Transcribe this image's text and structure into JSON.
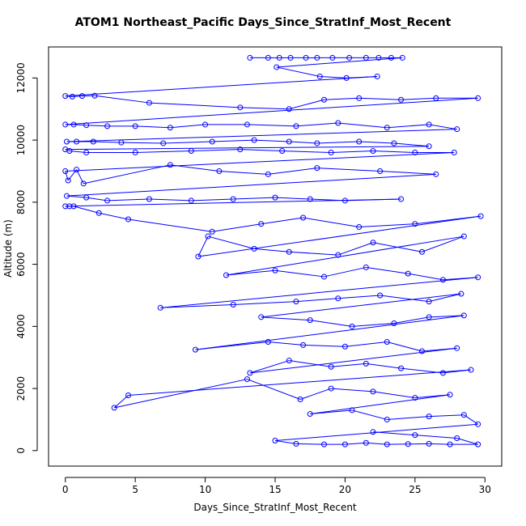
{
  "chart_data": {
    "type": "scatter",
    "title": "ATOM1 Northeast_Pacific Days_Since_StratInf_Most_Recent",
    "xlabel": "Days_Since_StratInf_Most_Recent",
    "ylabel": "Altitude (m)",
    "xlim": [
      -1.2,
      31.2
    ],
    "ylim": [
      -500,
      13000
    ],
    "xticks": [
      0,
      5,
      10,
      15,
      20,
      25,
      30
    ],
    "yticks": [
      0,
      2000,
      4000,
      6000,
      8000,
      10000,
      12000
    ],
    "grid": false,
    "legend": "none",
    "series_color": "#0000ff",
    "marker": "open-circle",
    "series": [
      {
        "points": [
          [
            13.2,
            12650
          ],
          [
            14.5,
            12650
          ],
          [
            15.3,
            12650
          ],
          [
            16.1,
            12650
          ],
          [
            17.2,
            12650
          ],
          [
            18.0,
            12650
          ],
          [
            19.1,
            12650
          ],
          [
            20.3,
            12650
          ],
          [
            21.5,
            12650
          ],
          [
            22.4,
            12650
          ],
          [
            23.3,
            12650
          ],
          [
            24.1,
            12650
          ],
          [
            15.1,
            12350
          ],
          [
            18.2,
            12050
          ],
          [
            20.1,
            12000
          ],
          [
            22.3,
            12050
          ],
          [
            0.0,
            11420
          ],
          [
            0.5,
            11400
          ],
          [
            1.2,
            11420
          ],
          [
            2.1,
            11430
          ],
          [
            6.0,
            11200
          ],
          [
            12.5,
            11050
          ],
          [
            16.0,
            11000
          ],
          [
            18.5,
            11300
          ],
          [
            21.0,
            11350
          ],
          [
            24.0,
            11300
          ],
          [
            26.5,
            11350
          ],
          [
            29.5,
            11350
          ],
          [
            0.0,
            10500
          ],
          [
            0.6,
            10500
          ],
          [
            1.5,
            10480
          ],
          [
            3.0,
            10450
          ],
          [
            5.0,
            10450
          ],
          [
            7.5,
            10400
          ],
          [
            10.0,
            10500
          ],
          [
            13.0,
            10500
          ],
          [
            16.5,
            10450
          ],
          [
            19.5,
            10550
          ],
          [
            23.0,
            10400
          ],
          [
            26.0,
            10500
          ],
          [
            28.0,
            10350
          ],
          [
            0.1,
            9950
          ],
          [
            0.8,
            9950
          ],
          [
            2.0,
            9950
          ],
          [
            4.0,
            9920
          ],
          [
            7.0,
            9900
          ],
          [
            10.5,
            9950
          ],
          [
            13.5,
            10000
          ],
          [
            16.0,
            9950
          ],
          [
            18.0,
            9900
          ],
          [
            21.0,
            9950
          ],
          [
            23.5,
            9900
          ],
          [
            26.0,
            9800
          ],
          [
            0.0,
            9700
          ],
          [
            0.3,
            9650
          ],
          [
            1.5,
            9600
          ],
          [
            5.0,
            9600
          ],
          [
            9.0,
            9650
          ],
          [
            12.5,
            9700
          ],
          [
            15.5,
            9650
          ],
          [
            19.0,
            9600
          ],
          [
            22.0,
            9650
          ],
          [
            25.0,
            9600
          ],
          [
            27.8,
            9600
          ],
          [
            0.0,
            9000
          ],
          [
            0.2,
            8700
          ],
          [
            0.8,
            9050
          ],
          [
            1.3,
            8600
          ],
          [
            7.5,
            9200
          ],
          [
            11.0,
            9000
          ],
          [
            14.5,
            8900
          ],
          [
            18.0,
            9100
          ],
          [
            22.5,
            9000
          ],
          [
            26.5,
            8900
          ],
          [
            0.1,
            8200
          ],
          [
            1.5,
            8150
          ],
          [
            3.0,
            8050
          ],
          [
            6.0,
            8100
          ],
          [
            9.0,
            8050
          ],
          [
            12.0,
            8100
          ],
          [
            15.0,
            8150
          ],
          [
            17.5,
            8100
          ],
          [
            20.0,
            8050
          ],
          [
            24.0,
            8100
          ],
          [
            0.0,
            7870
          ],
          [
            0.3,
            7870
          ],
          [
            0.6,
            7870
          ],
          [
            2.4,
            7650
          ],
          [
            4.5,
            7450
          ],
          [
            10.5,
            7050
          ],
          [
            14.0,
            7300
          ],
          [
            17.0,
            7500
          ],
          [
            21.0,
            7200
          ],
          [
            25.0,
            7300
          ],
          [
            29.7,
            7550
          ],
          [
            9.5,
            6250
          ],
          [
            10.2,
            6900
          ],
          [
            13.5,
            6500
          ],
          [
            16.0,
            6400
          ],
          [
            19.5,
            6300
          ],
          [
            22.0,
            6700
          ],
          [
            25.5,
            6400
          ],
          [
            28.5,
            6900
          ],
          [
            11.5,
            5650
          ],
          [
            15.0,
            5800
          ],
          [
            18.5,
            5600
          ],
          [
            21.5,
            5900
          ],
          [
            24.5,
            5700
          ],
          [
            27.0,
            5500
          ],
          [
            29.5,
            5580
          ],
          [
            6.8,
            4600
          ],
          [
            12.0,
            4700
          ],
          [
            16.5,
            4800
          ],
          [
            19.5,
            4900
          ],
          [
            22.5,
            5000
          ],
          [
            26.0,
            4800
          ],
          [
            28.3,
            5050
          ],
          [
            14.0,
            4300
          ],
          [
            17.5,
            4200
          ],
          [
            20.5,
            4000
          ],
          [
            23.5,
            4100
          ],
          [
            26.0,
            4300
          ],
          [
            28.5,
            4350
          ],
          [
            9.3,
            3250
          ],
          [
            14.5,
            3500
          ],
          [
            17.0,
            3400
          ],
          [
            20.0,
            3350
          ],
          [
            23.0,
            3500
          ],
          [
            25.5,
            3200
          ],
          [
            28.0,
            3300
          ],
          [
            13.2,
            2500
          ],
          [
            16.0,
            2900
          ],
          [
            19.0,
            2700
          ],
          [
            21.5,
            2800
          ],
          [
            24.0,
            2650
          ],
          [
            27.0,
            2500
          ],
          [
            29.0,
            2600
          ],
          [
            4.5,
            1780
          ],
          [
            3.5,
            1380
          ],
          [
            13.0,
            2300
          ],
          [
            16.8,
            1650
          ],
          [
            19.0,
            2000
          ],
          [
            22.0,
            1900
          ],
          [
            25.0,
            1700
          ],
          [
            27.5,
            1800
          ],
          [
            17.5,
            1180
          ],
          [
            20.5,
            1300
          ],
          [
            23.0,
            1000
          ],
          [
            26.0,
            1100
          ],
          [
            28.5,
            1150
          ],
          [
            29.5,
            850
          ],
          [
            15.0,
            320
          ],
          [
            16.5,
            220
          ],
          [
            18.5,
            200
          ],
          [
            20.0,
            200
          ],
          [
            21.5,
            250
          ],
          [
            23.0,
            200
          ],
          [
            24.5,
            210
          ],
          [
            26.0,
            220
          ],
          [
            27.5,
            200
          ],
          [
            29.5,
            200
          ],
          [
            28.0,
            400
          ],
          [
            25.0,
            500
          ],
          [
            22.0,
            600
          ]
        ]
      }
    ]
  }
}
